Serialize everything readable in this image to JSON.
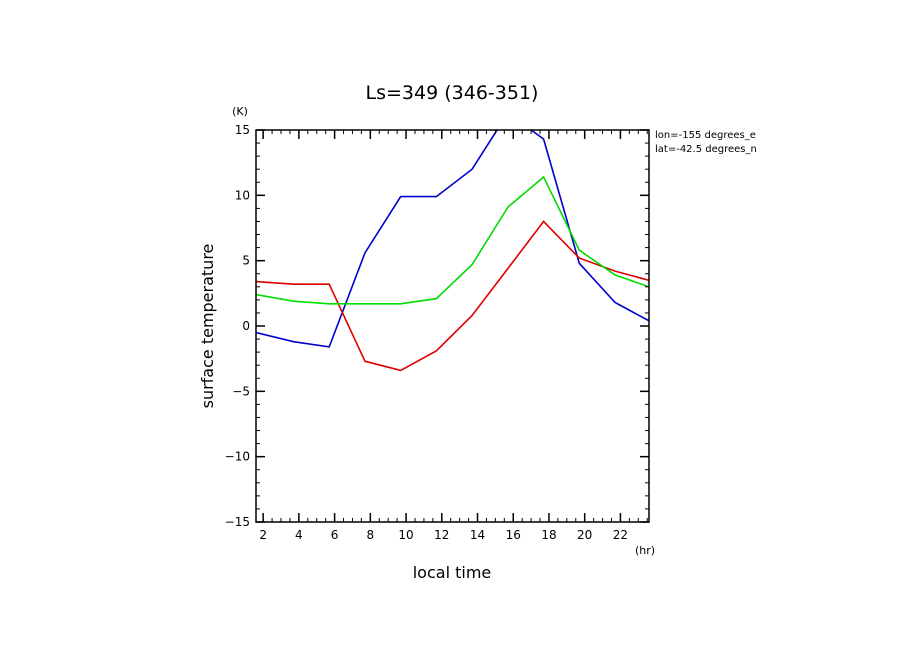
{
  "chart_data": {
    "type": "line",
    "title": "Ls=349 (346-351)",
    "xlabel": "local time",
    "ylabel": "surface temperature",
    "x_unit": "(hr)",
    "y_unit": "(K)",
    "info": [
      "lon=-155 degrees_e",
      "lat=-42.5 degrees_n"
    ],
    "xlim": [
      1.6,
      23.6
    ],
    "ylim": [
      -15,
      15
    ],
    "x_ticks": [
      2,
      4,
      6,
      8,
      10,
      12,
      14,
      16,
      18,
      20,
      22
    ],
    "y_ticks": [
      -15,
      -10,
      -5,
      0,
      5,
      10,
      15
    ],
    "grid": false,
    "x": [
      1.6,
      3.7,
      5.7,
      7.7,
      9.7,
      11.7,
      13.7,
      15.7,
      17.7,
      19.7,
      21.7,
      23.6
    ],
    "series": [
      {
        "color": "#0000cc",
        "values": [
          -0.5,
          -1.2,
          -1.6,
          5.6,
          9.9,
          9.9,
          12.0,
          16.3,
          14.3,
          4.8,
          1.8,
          0.4
        ]
      },
      {
        "color": "#dd0000",
        "values": [
          3.4,
          3.2,
          3.2,
          -2.7,
          -3.4,
          -1.9,
          0.8,
          4.4,
          8.0,
          5.2,
          4.2,
          3.5
        ]
      },
      {
        "color": "#00dd00",
        "values": [
          2.4,
          1.9,
          1.7,
          1.7,
          1.7,
          2.1,
          4.7,
          9.1,
          11.4,
          5.8,
          3.9,
          3.0
        ]
      }
    ]
  }
}
